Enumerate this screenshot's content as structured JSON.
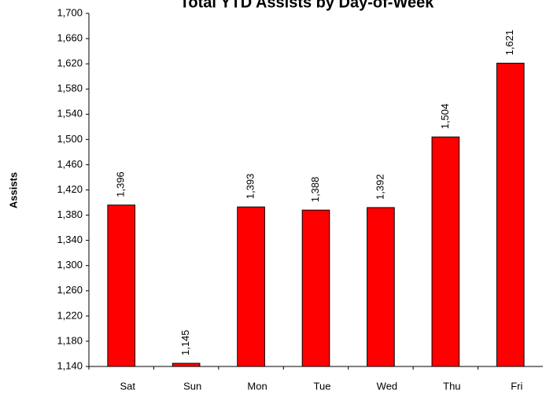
{
  "chart_data": {
    "type": "bar",
    "title": "Total YTD Assists by Day-of-Week",
    "y_label": "Assists",
    "categories": [
      "Sat",
      "Sun",
      "Mon",
      "Tue",
      "Wed",
      "Thu",
      "Fri"
    ],
    "values": [
      1396,
      1145,
      1393,
      1388,
      1392,
      1504,
      1621
    ],
    "value_labels": [
      "1,396",
      "1,145",
      "1,393",
      "1,388",
      "1,392",
      "1,504",
      "1,621"
    ],
    "color": "#ff0000",
    "ylim": [
      1140,
      1700
    ],
    "yticks": [
      {
        "value": 1140,
        "label": "1,140"
      },
      {
        "value": 1180,
        "label": "1,180"
      },
      {
        "value": 1220,
        "label": "1,220"
      },
      {
        "value": 1260,
        "label": "1,260"
      },
      {
        "value": 1300,
        "label": "1,300"
      },
      {
        "value": 1340,
        "label": "1,340"
      },
      {
        "value": 1380,
        "label": "1,380"
      },
      {
        "value": 1420,
        "label": "1,420"
      },
      {
        "value": 1460,
        "label": "1,460"
      },
      {
        "value": 1500,
        "label": "1,500"
      },
      {
        "value": 1540,
        "label": "1,540"
      },
      {
        "value": 1580,
        "label": "1,580"
      },
      {
        "value": 1620,
        "label": "1,620"
      },
      {
        "value": 1660,
        "label": "1,660"
      },
      {
        "value": 1700,
        "label": "1,700"
      }
    ],
    "grid": false
  }
}
